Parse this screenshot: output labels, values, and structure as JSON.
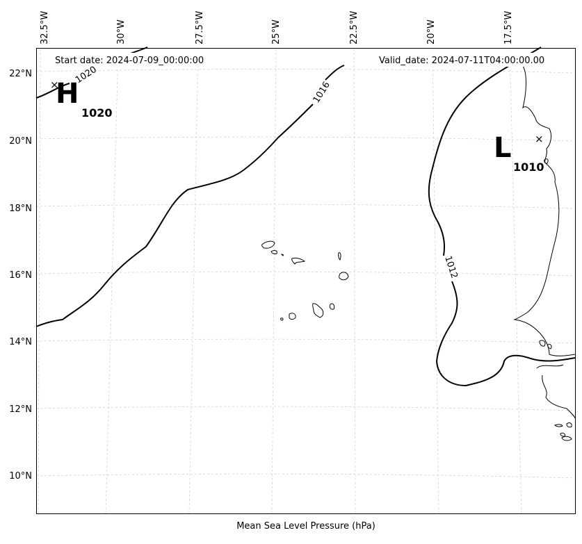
{
  "map": {
    "start_date_text": "Start date: 2024-07-09_00:00:00",
    "valid_date_text": "Valid_date: 2024-07-11T04:00:00.00",
    "caption": "Mean Sea Level Pressure (hPa)",
    "lon_labels": [
      "32.5°W",
      "30°W",
      "27.5°W",
      "25°W",
      "22.5°W",
      "20°W",
      "17.5°W"
    ],
    "lat_labels": [
      "22°N",
      "20°N",
      "18°N",
      "16°N",
      "14°N",
      "12°N",
      "10°N"
    ],
    "isobars": [
      {
        "value": "1020",
        "units": "hPa"
      },
      {
        "value": "1016",
        "units": "hPa"
      },
      {
        "value": "1012",
        "units": "hPa"
      }
    ],
    "high": {
      "letter": "H",
      "value": "1020"
    },
    "low": {
      "letter": "L",
      "value": "1010"
    },
    "colors": {
      "isobar": "#000000",
      "grid": "#cccccc",
      "coast": "#000000"
    }
  }
}
